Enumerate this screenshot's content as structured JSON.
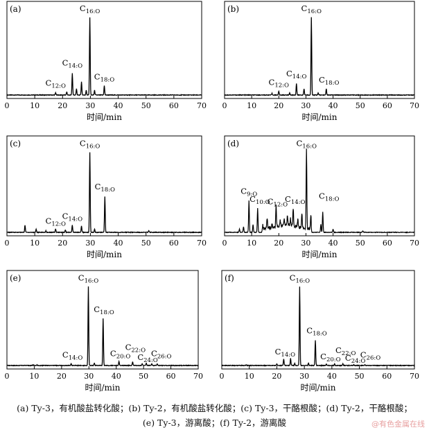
{
  "figure": {
    "caption_line1": "(a) Ty-3，有机酸盐转化酸；(b) Ty-2，有机酸盐转化酸；(c) Ty-3，干酪根酸；(d) Ty-2，干酪根酸；",
    "caption_line2": "(e) Ty-3，游离酸；(f) Ty-2，游离酸",
    "watermark": "@有色金属在线"
  },
  "chart_data": [
    {
      "panel": "(a)",
      "type": "line",
      "xlabel": "时间/min",
      "xlim": [
        0,
        70
      ],
      "xticks": [
        0,
        10,
        20,
        30,
        40,
        50,
        60,
        70
      ],
      "peaks": [
        [
          17.5,
          0.03
        ],
        [
          21.5,
          0.04
        ],
        [
          23.5,
          0.28
        ],
        [
          25,
          0.08
        ],
        [
          26.8,
          0.17
        ],
        [
          28.5,
          0.06
        ],
        [
          29.8,
          1.0
        ],
        [
          31.5,
          0.06
        ],
        [
          35,
          0.12
        ]
      ],
      "labels": [
        {
          "base": "C",
          "sub": "12:O",
          "x": 17.5,
          "y": 0.12
        },
        {
          "base": "C",
          "sub": "14:O",
          "x": 23.5,
          "y": 0.38
        },
        {
          "base": "C",
          "sub": "16:O",
          "x": 29.8,
          "y": 1.08
        },
        {
          "base": "C",
          "sub": "18:O",
          "x": 35,
          "y": 0.2
        }
      ]
    },
    {
      "panel": "(b)",
      "type": "line",
      "xlabel": "时间/min",
      "xlim": [
        0,
        70
      ],
      "xticks": [
        0,
        10,
        20,
        30,
        40,
        50,
        60,
        70
      ],
      "peaks": [
        [
          17.5,
          0.02
        ],
        [
          20,
          0.05
        ],
        [
          24,
          0.03
        ],
        [
          26.5,
          0.15
        ],
        [
          29.3,
          0.08
        ],
        [
          32,
          1.0
        ],
        [
          34.5,
          0.03
        ],
        [
          37.5,
          0.08
        ]
      ],
      "labels": [
        {
          "base": "C",
          "sub": "12:O",
          "x": 20,
          "y": 0.13
        },
        {
          "base": "C",
          "sub": "14:O",
          "x": 26.5,
          "y": 0.24
        },
        {
          "base": "C",
          "sub": "16:O",
          "x": 32,
          "y": 1.08
        },
        {
          "base": "C",
          "sub": "18:O",
          "x": 38.5,
          "y": 0.16
        }
      ]
    },
    {
      "panel": "(c)",
      "type": "line",
      "xlabel": "时间/min",
      "xlim": [
        0,
        70
      ],
      "xticks": [
        0,
        10,
        20,
        30,
        40,
        50,
        60,
        70
      ],
      "peaks": [
        [
          6.5,
          0.09
        ],
        [
          10.5,
          0.04
        ],
        [
          14,
          0.02
        ],
        [
          17.5,
          0.04
        ],
        [
          21,
          0.03
        ],
        [
          23.5,
          0.09
        ],
        [
          26.8,
          0.08
        ],
        [
          29.8,
          1.0
        ],
        [
          31.5,
          0.04
        ],
        [
          35.2,
          0.45
        ],
        [
          51,
          0.02
        ]
      ],
      "labels": [
        {
          "base": "C",
          "sub": "12:O",
          "x": 17.5,
          "y": 0.11
        },
        {
          "base": "C",
          "sub": "14:O",
          "x": 23.5,
          "y": 0.17
        },
        {
          "base": "C",
          "sub": "16:O",
          "x": 29.8,
          "y": 1.08
        },
        {
          "base": "C",
          "sub": "18:O",
          "x": 35.2,
          "y": 0.54
        }
      ]
    },
    {
      "panel": "(d)",
      "type": "line",
      "xlabel": "时间/min",
      "xlim": [
        0,
        70
      ],
      "xticks": [
        0,
        10,
        20,
        30,
        40,
        50,
        60,
        70
      ],
      "peaks": [
        [
          5.5,
          0.04
        ],
        [
          7,
          0.07
        ],
        [
          9,
          0.4
        ],
        [
          10.5,
          0.1
        ],
        [
          12.2,
          0.3
        ],
        [
          14,
          0.06
        ],
        [
          15.7,
          0.13
        ],
        [
          17.5,
          0.05
        ],
        [
          19,
          0.27
        ],
        [
          20.5,
          0.08
        ],
        [
          22,
          0.07
        ],
        [
          23.2,
          0.12
        ],
        [
          24.3,
          0.08
        ],
        [
          25.3,
          0.23
        ],
        [
          27,
          0.1
        ],
        [
          28.5,
          0.18
        ],
        [
          30.2,
          1.0
        ],
        [
          31.8,
          0.18
        ],
        [
          35.5,
          0.1
        ],
        [
          36.2,
          0.26
        ],
        [
          40,
          0.04
        ],
        [
          51,
          0.02
        ]
      ],
      "labels": [
        {
          "base": "C",
          "sub": "9:O",
          "x": 9,
          "y": 0.48
        },
        {
          "base": "C",
          "sub": "10:O",
          "x": 13,
          "y": 0.38
        },
        {
          "base": "C",
          "sub": "12:O",
          "x": 19.5,
          "y": 0.35
        },
        {
          "base": "C",
          "sub": "14:O",
          "x": 26,
          "y": 0.38
        },
        {
          "base": "C",
          "sub": "16:O",
          "x": 30.2,
          "y": 1.08
        },
        {
          "base": "C",
          "sub": "18:O",
          "x": 38.5,
          "y": 0.42
        }
      ]
    },
    {
      "panel": "(e)",
      "type": "line",
      "xlabel": "时间/min",
      "xlim": [
        0,
        70
      ],
      "xticks": [
        0,
        10,
        20,
        30,
        40,
        50,
        60,
        70
      ],
      "peaks": [
        [
          9.5,
          0.01
        ],
        [
          11,
          0.01
        ],
        [
          23.5,
          0.02
        ],
        [
          29.8,
          1.0
        ],
        [
          32,
          0.03
        ],
        [
          35.2,
          0.6
        ],
        [
          41,
          0.05
        ],
        [
          46,
          0.05
        ],
        [
          49.5,
          0.02
        ],
        [
          51,
          0.03
        ],
        [
          53,
          0.02
        ],
        [
          55,
          0.02
        ]
      ],
      "labels": [
        {
          "base": "C",
          "sub": "14:O",
          "x": 24,
          "y": 0.1
        },
        {
          "base": "C",
          "sub": "16:O",
          "x": 29.8,
          "y": 1.08
        },
        {
          "base": "C",
          "sub": "18:O",
          "x": 35.5,
          "y": 0.68
        },
        {
          "base": "C",
          "sub": "20:O",
          "x": 41.5,
          "y": 0.12
        },
        {
          "base": "C",
          "sub": "22:O",
          "x": 47,
          "y": 0.2
        },
        {
          "base": "C",
          "sub": "24:O",
          "x": 51.5,
          "y": 0.07
        },
        {
          "base": "C",
          "sub": "26:O",
          "x": 56.5,
          "y": 0.12
        }
      ]
    },
    {
      "panel": "(f)",
      "type": "line",
      "xlabel": "时间/min",
      "xlim": [
        0,
        70
      ],
      "xticks": [
        0,
        10,
        20,
        30,
        40,
        50,
        60,
        70
      ],
      "peaks": [
        [
          9,
          0.01
        ],
        [
          20,
          0.02
        ],
        [
          22.5,
          0.08
        ],
        [
          25,
          0.09
        ],
        [
          26.5,
          0.03
        ],
        [
          28.3,
          1.0
        ],
        [
          31.5,
          0.03
        ],
        [
          34,
          0.32
        ],
        [
          38,
          0.02
        ],
        [
          41,
          0.02
        ],
        [
          44,
          0.02
        ],
        [
          48,
          0.01
        ],
        [
          52,
          0.01
        ]
      ],
      "labels": [
        {
          "base": "C",
          "sub": "14:O",
          "x": 23,
          "y": 0.14
        },
        {
          "base": "C",
          "sub": "16:O",
          "x": 28.3,
          "y": 1.08
        },
        {
          "base": "C",
          "sub": "18:O",
          "x": 34.5,
          "y": 0.41
        },
        {
          "base": "C",
          "sub": "20:O",
          "x": 39.5,
          "y": 0.08
        },
        {
          "base": "C",
          "sub": "22:O",
          "x": 45,
          "y": 0.16
        },
        {
          "base": "C",
          "sub": "24:O",
          "x": 48.5,
          "y": 0.06
        },
        {
          "base": "C",
          "sub": "26:O",
          "x": 54,
          "y": 0.1
        }
      ]
    }
  ]
}
